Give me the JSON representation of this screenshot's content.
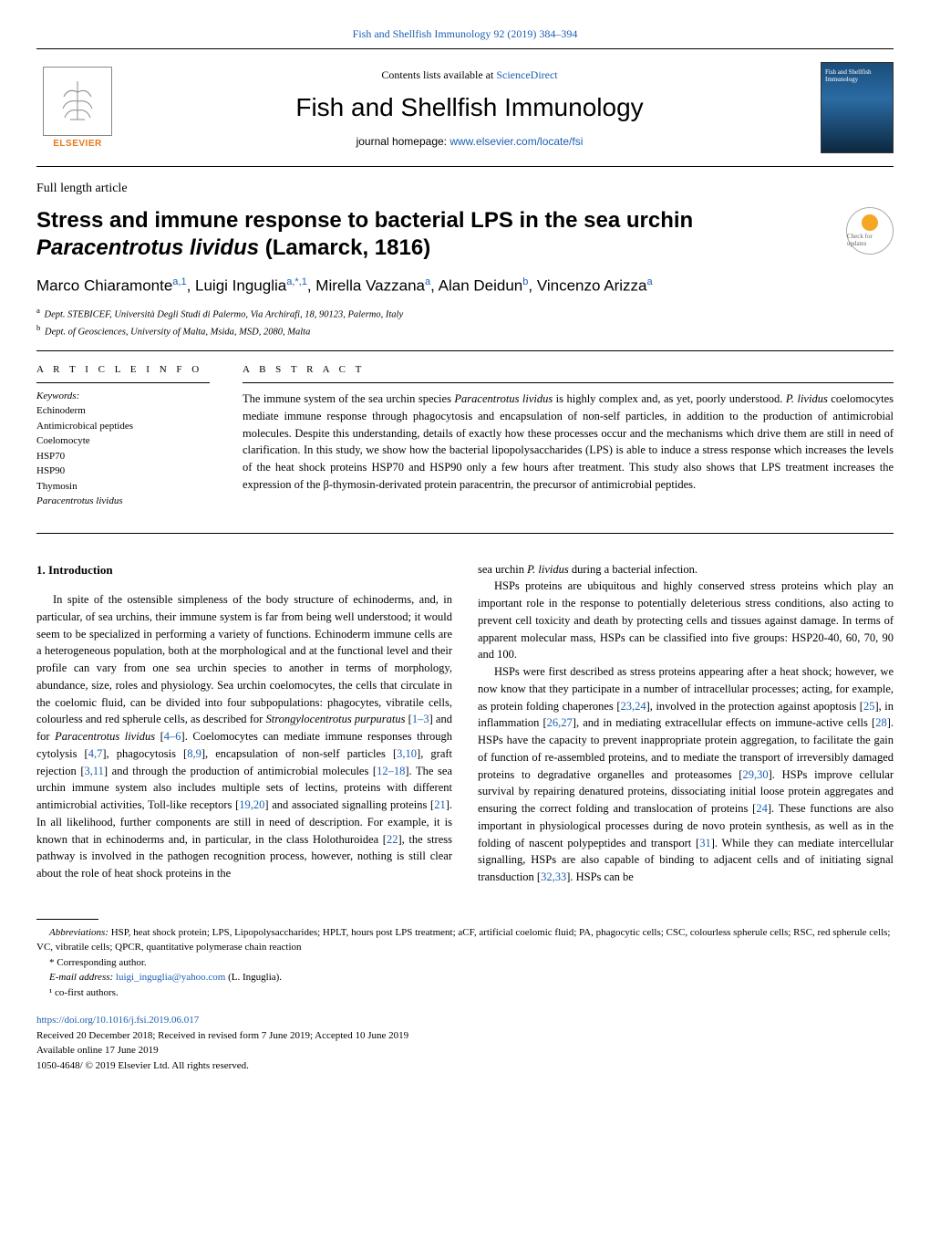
{
  "top_journal_ref": "Fish and Shellfish Immunology 92 (2019) 384–394",
  "header": {
    "contents_prefix": "Contents lists available at ",
    "contents_link": "ScienceDirect",
    "journal_title": "Fish and Shellfish Immunology",
    "homepage_prefix": "journal homepage: ",
    "homepage_link": "www.elsevier.com/locate/fsi",
    "publisher_name": "ELSEVIER"
  },
  "article": {
    "type": "Full length article",
    "title_plain_before_em": "Stress and immune response to bacterial LPS in the sea urchin ",
    "title_em": "Paracentrotus lividus",
    "title_after_em": " (Lamarck, 1816)",
    "check_updates_label": "Check for updates",
    "authors_html": "Marco Chiaramonte<sup>a,1</sup>, Luigi Inguglia<sup>a,*,1</sup>, Mirella Vazzana<sup>a</sup>, Alan Deidun<sup>b</sup>, Vincenzo Arizza<sup>a</sup>",
    "affiliations": {
      "a": "Dept. STEBICEF, Università Degli Studi di Palermo, Via Archirafi, 18, 90123, Palermo, Italy",
      "b": "Dept. of Geosciences, University of Malta, Msida, MSD, 2080, Malta"
    }
  },
  "meta": {
    "article_info_label": "A R T I C L E  I N F O",
    "abstract_label": "A B S T R A C T",
    "keywords_label": "Keywords:",
    "keywords": [
      "Echinoderm",
      "Antimicrobical peptides",
      "Coelomocyte",
      "HSP70",
      "HSP90",
      "Thymosin",
      "Paracentrotus lividus"
    ],
    "abstract": "The immune system of the sea urchin species Paracentrotus lividus is highly complex and, as yet, poorly understood. P. lividus coelomocytes mediate immune response through phagocytosis and encapsulation of non-self particles, in addition to the production of antimicrobial molecules. Despite this understanding, details of exactly how these processes occur and the mechanisms which drive them are still in need of clarification. In this study, we show how the bacterial lipopolysaccharides (LPS) is able to induce a stress response which increases the levels of the heat shock proteins HSP70 and HSP90 only a few hours after treatment. This study also shows that LPS treatment increases the expression of the β-thymosin-derivated protein paracentrin, the precursor of antimicrobial peptides."
  },
  "sections": {
    "intro_heading": "1. Introduction",
    "col1_p1": "In spite of the ostensible simpleness of the body structure of echinoderms, and, in particular, of sea urchins, their immune system is far from being well understood; it would seem to be specialized in performing a variety of functions. Echinoderm immune cells are a heterogeneous population, both at the morphological and at the functional level and their profile can vary from one sea urchin species to another in terms of morphology, abundance, size, roles and physiology. Sea urchin coelomocytes, the cells that circulate in the coelomic fluid, can be divided into four subpopulations: phagocytes, vibratile cells, colourless and red spherule cells, as described for Strongylocentrotus purpuratus [1–3] and for Paracentrotus lividus [4–6]. Coelomocytes can mediate immune responses through cytolysis [4,7], phagocytosis [8,9], encapsulation of non-self particles [3,10], graft rejection [3,11] and through the production of antimicrobial molecules [12–18]. The sea urchin immune system also includes multiple sets of lectins, proteins with different antimicrobial activities, Toll-like receptors [19,20] and associated signalling proteins [21]. In all likelihood, further components are still in need of description. For example, it is known that in echinoderms and, in particular, in the class Holothuroidea [22], the stress pathway is involved in the pathogen recognition process, however, nothing is still clear about the role of heat shock proteins in the",
    "col2_p1": "sea urchin P. lividus during a bacterial infection.",
    "col2_p2": "HSPs proteins are ubiquitous and highly conserved stress proteins which play an important role in the response to potentially deleterious stress conditions, also acting to prevent cell toxicity and death by protecting cells and tissues against damage. In terms of apparent molecular mass, HSPs can be classified into five groups: HSP20-40, 60, 70, 90 and 100.",
    "col2_p3": "HSPs were first described as stress proteins appearing after a heat shock; however, we now know that they participate in a number of intracellular processes; acting, for example, as protein folding chaperones [23,24], involved in the protection against apoptosis [25], in inflammation [26,27], and in mediating extracellular effects on immune-active cells [28]. HSPs have the capacity to prevent inappropriate protein aggregation, to facilitate the gain of function of re-assembled proteins, and to mediate the transport of irreversibly damaged proteins to degradative organelles and proteasomes [29,30]. HSPs improve cellular survival by repairing denatured proteins, dissociating initial loose protein aggregates and ensuring the correct folding and translocation of proteins [24]. These functions are also important in physiological processes during de novo protein synthesis, as well as in the folding of nascent polypeptides and transport [31]. While they can mediate intercellular signalling, HSPs are also capable of binding to adjacent cells and of initiating signal transduction [32,33]. HSPs can be"
  },
  "footer": {
    "abbrev_label": "Abbreviations:",
    "abbrev_text": " HSP, heat shock protein; LPS, Lipopolysaccharides; HPLT, hours post LPS treatment; aCF, artificial coelomic fluid; PA, phagocytic cells; CSC, colourless spherule cells; RSC, red spherule cells; VC, vibratile cells; QPCR, quantitative polymerase chain reaction",
    "corresponding": "* Corresponding author.",
    "email_label": "E-mail address: ",
    "email": "luigi_inguglia@yahoo.com",
    "email_suffix": " (L. Inguglia).",
    "cofirst": "¹ co-first authors.",
    "doi": "https://doi.org/10.1016/j.fsi.2019.06.017",
    "received": "Received 20 December 2018; Received in revised form 7 June 2019; Accepted 10 June 2019",
    "available": "Available online 17 June 2019",
    "copyright": "1050-4648/ © 2019 Elsevier Ltd. All rights reserved."
  }
}
